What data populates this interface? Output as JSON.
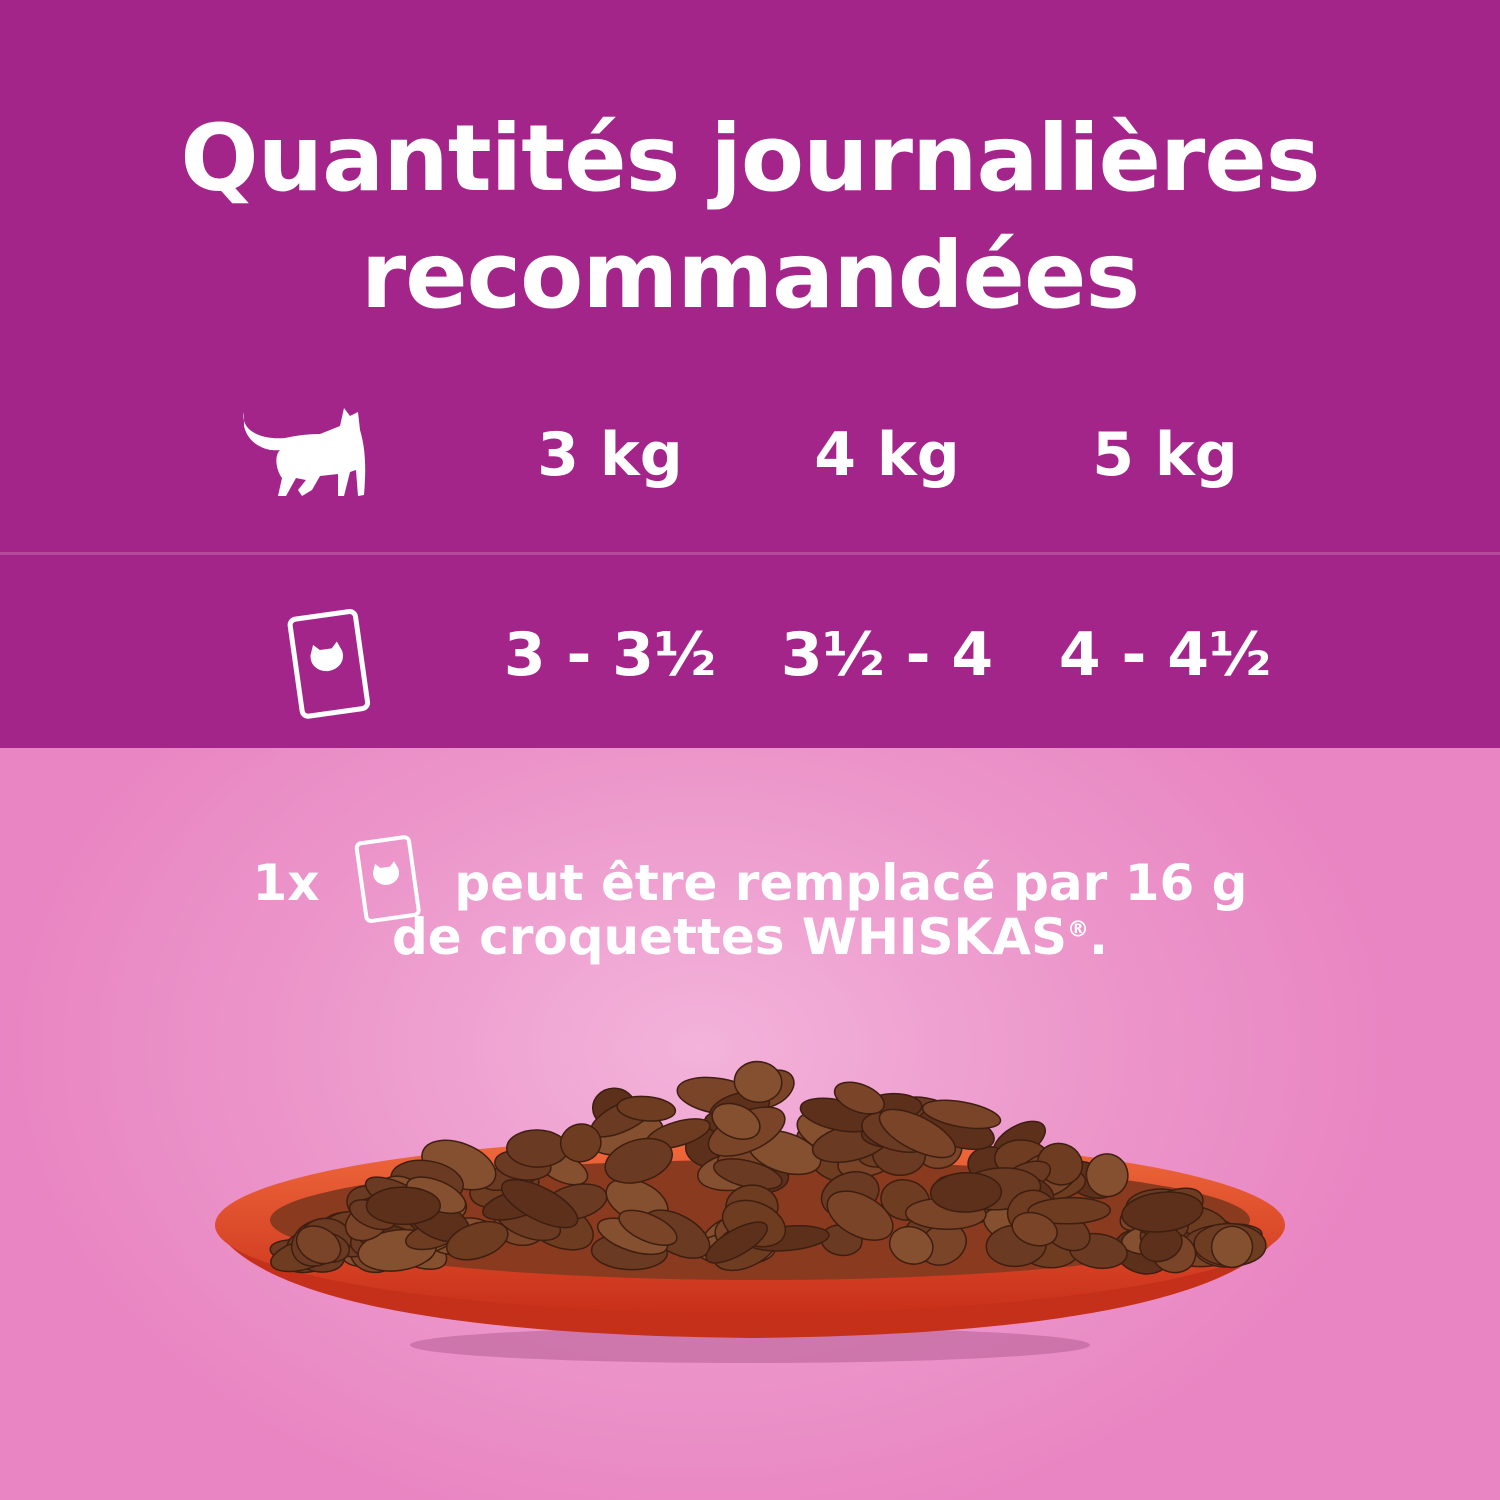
{
  "title": {
    "line1": "Quantités journalières",
    "line2": "recommandées"
  },
  "table": {
    "weights": [
      "3 kg",
      "4 kg",
      "5 kg"
    ],
    "pouches": [
      "3 - 3½",
      "3½ - 4",
      "4 - 4½"
    ],
    "row_icons": [
      "cat-icon",
      "pouch-icon"
    ]
  },
  "note": {
    "prefix": "1x",
    "line1": "peut être remplacé par 16 g",
    "line2": "de croquettes WHISKAS",
    "registered": "®",
    "end": "."
  },
  "colors": {
    "header_bg": "#a4258a",
    "bottom_bg": "#ec97cb",
    "bowl": "#e0401e",
    "food": "#6b3a22"
  }
}
